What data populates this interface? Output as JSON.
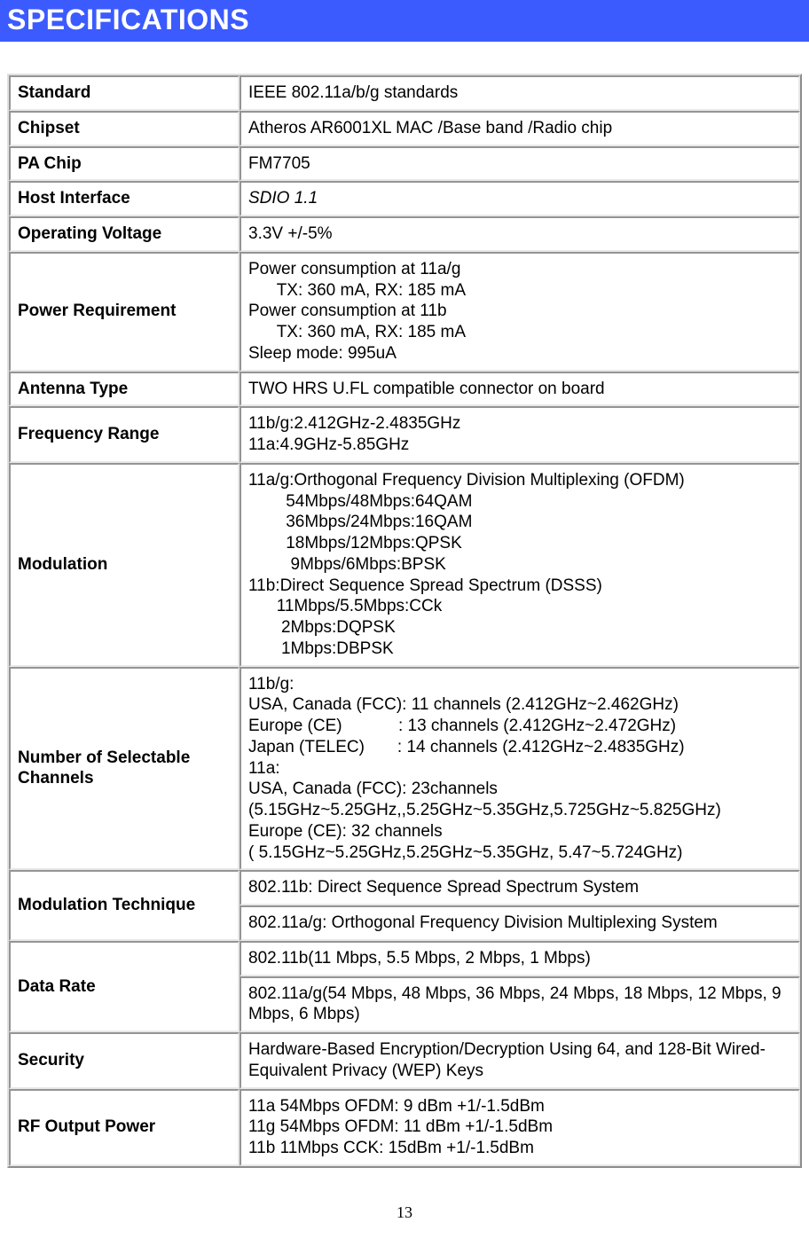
{
  "header": {
    "title": "SPECIFICATIONS"
  },
  "table": {
    "rows": [
      {
        "label": "Standard",
        "value": "IEEE 802.11a/b/g standards"
      },
      {
        "label": "Chipset",
        "value": "Atheros   AR6001XL   MAC /Base band /Radio chip"
      },
      {
        "label": "PA Chip",
        "value": "FM7705"
      },
      {
        "label": "Host Interface",
        "value": "SDIO 1.1",
        "italic": true
      },
      {
        "label": "Operating Voltage",
        "value": "3.3V +/-5%"
      },
      {
        "label": "Power Requirement",
        "value": "Power consumption at 11a/g\n      TX: 360 mA, RX: 185 mA\nPower consumption at 11b\n      TX: 360 mA, RX: 185 mA\nSleep mode: 995uA"
      },
      {
        "label": "Antenna Type",
        "value": "TWO HRS U.FL compatible connector on board"
      },
      {
        "label": "Frequency Range",
        "value": "11b/g:2.412GHz-2.4835GHz\n11a:4.9GHz-5.85GHz"
      },
      {
        "label": "Modulation",
        "value": "11a/g:Orthogonal Frequency Division Multiplexing (OFDM)\n        54Mbps/48Mbps:64QAM\n        36Mbps/24Mbps:16QAM\n        18Mbps/12Mbps:QPSK\n         9Mbps/6Mbps:BPSK\n11b:Direct Sequence Spread Spectrum (DSSS)\n      11Mbps/5.5Mbps:CCk\n       2Mbps:DQPSK\n       1Mbps:DBPSK"
      },
      {
        "label": "Number of Selectable Channels",
        "value": "11b/g:\nUSA, Canada (FCC): 11 channels (2.412GHz~2.462GHz)\nEurope (CE)            : 13 channels (2.412GHz~2.472GHz)\nJapan (TELEC)       : 14 channels (2.412GHz~2.4835GHz)\n11a:\nUSA, Canada (FCC): 23channels\n(5.15GHz~5.25GHz,,5.25GHz~5.35GHz,5.725GHz~5.825GHz)\nEurope (CE): 32 channels\n( 5.15GHz~5.25GHz,5.25GHz~5.35GHz, 5.47~5.724GHz)"
      }
    ],
    "modulation_technique": {
      "label": "Modulation Technique",
      "values": [
        "802.11b: Direct Sequence Spread Spectrum System",
        "802.11a/g: Orthogonal Frequency Division Multiplexing System"
      ]
    },
    "data_rate": {
      "label": "Data Rate",
      "values": [
        "802.11b(11 Mbps, 5.5 Mbps, 2 Mbps, 1 Mbps)",
        "802.11a/g(54 Mbps, 48 Mbps, 36 Mbps, 24 Mbps, 18 Mbps, 12 Mbps, 9 Mbps, 6 Mbps)"
      ]
    },
    "rows2": [
      {
        "label": "Security",
        "value": "Hardware-Based Encryption/Decryption Using 64, and 128-Bit Wired-Equivalent Privacy (WEP) Keys"
      },
      {
        "label": "RF Output Power",
        "value": "11a 54Mbps OFDM: 9 dBm +1/-1.5dBm\n11g 54Mbps OFDM: 11 dBm +1/-1.5dBm\n11b 11Mbps CCK: 15dBm +1/-1.5dBm"
      }
    ]
  },
  "page_number": "13",
  "colors": {
    "header_bg": "#3b5bff",
    "header_text": "#ffffff",
    "cell_border": "#e8e8e8",
    "body_text": "#000000"
  }
}
